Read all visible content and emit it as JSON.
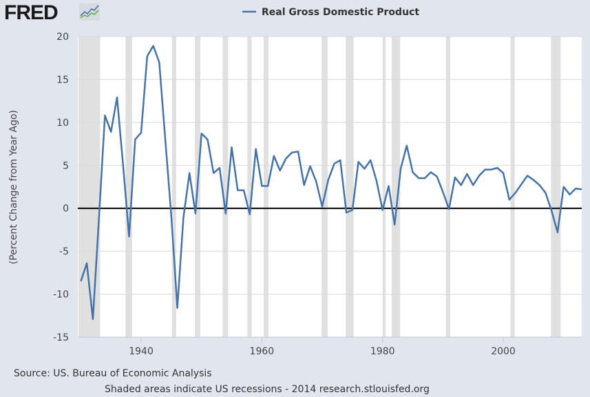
{
  "logo": {
    "text": "FRED"
  },
  "chart_data": {
    "type": "line",
    "title": "",
    "legend": {
      "entries": [
        "Real Gross Domestic Product"
      ],
      "placement": "top-center"
    },
    "xlabel": "",
    "ylabel": "(Percent Change from Year Ago)",
    "xlim": [
      1929.5,
      2013
    ],
    "ylim": [
      -15,
      20
    ],
    "xticks": [
      1940,
      1960,
      1980,
      2000
    ],
    "yticks": [
      20,
      15,
      10,
      5,
      0,
      -5,
      -10,
      -15
    ],
    "grid": true,
    "line_color": "#4572a7",
    "recession_color": "#e0e0e0",
    "recessions": [
      [
        1929.6,
        1933.2
      ],
      [
        1937.4,
        1938.5
      ],
      [
        1945.1,
        1945.8
      ],
      [
        1948.9,
        1949.8
      ],
      [
        1953.5,
        1954.4
      ],
      [
        1957.6,
        1958.3
      ],
      [
        1960.3,
        1961.1
      ],
      [
        1969.9,
        1970.9
      ],
      [
        1973.9,
        1975.2
      ],
      [
        1980.0,
        1980.5
      ],
      [
        1981.5,
        1982.9
      ],
      [
        1990.5,
        1991.2
      ],
      [
        2001.2,
        2001.9
      ],
      [
        2007.9,
        2009.5
      ]
    ],
    "series": [
      {
        "name": "Real Gross Domestic Product",
        "x_start": 1930,
        "values": [
          -8.5,
          -6.4,
          -12.9,
          -1.2,
          10.8,
          8.9,
          12.9,
          5.1,
          -3.3,
          8.0,
          8.8,
          17.7,
          18.9,
          17.0,
          8.0,
          -1.0,
          -11.6,
          -1.1,
          4.1,
          -0.6,
          8.7,
          8.0,
          4.1,
          4.7,
          -0.6,
          7.1,
          2.1,
          2.1,
          -0.7,
          6.9,
          2.6,
          2.6,
          6.1,
          4.4,
          5.8,
          6.5,
          6.6,
          2.7,
          4.9,
          3.1,
          0.2,
          3.3,
          5.2,
          5.6,
          -0.5,
          -0.2,
          5.4,
          4.6,
          5.6,
          3.2,
          -0.2,
          2.6,
          -1.9,
          4.6,
          7.3,
          4.2,
          3.5,
          3.5,
          4.2,
          3.7,
          1.9,
          -0.1,
          3.6,
          2.7,
          4.0,
          2.7,
          3.8,
          4.5,
          4.5,
          4.7,
          4.1,
          1.0,
          1.8,
          2.8,
          3.8,
          3.3,
          2.7,
          1.8,
          -0.3,
          -2.8,
          2.5,
          1.6,
          2.3,
          2.2
        ]
      }
    ]
  },
  "footer": {
    "source": "Source: US. Bureau of Economic Analysis",
    "note": "Shaded areas indicate US recessions - 2014 research.stlouisfed.org"
  }
}
